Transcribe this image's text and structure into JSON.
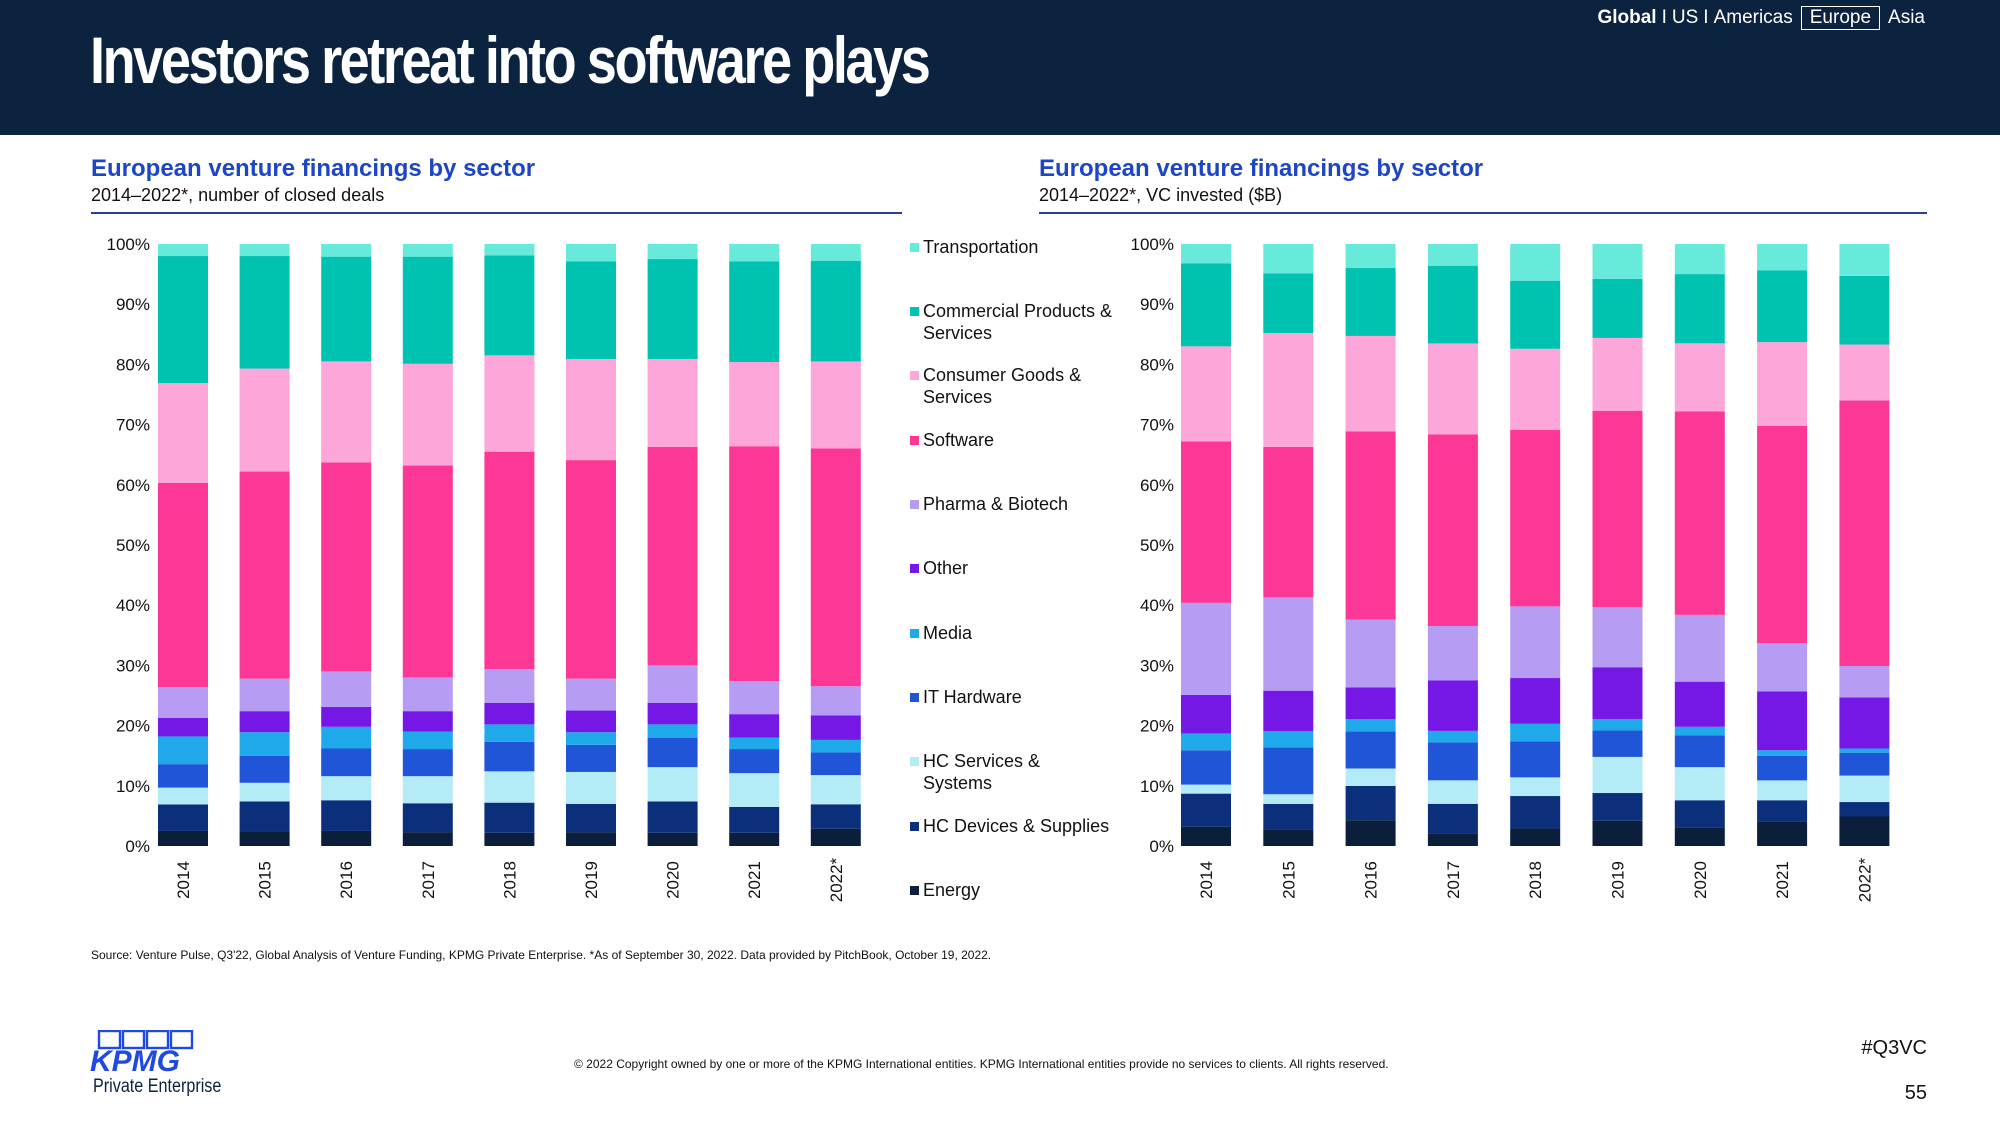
{
  "header": {
    "title": "Investors retreat into software plays",
    "nav": {
      "global": "Global",
      "sep1": "I",
      "us": "US",
      "sep2": "I",
      "americas": "Americas",
      "europe": "Europe",
      "asia": "Asia"
    }
  },
  "colors": {
    "Energy": "#0b1f3d",
    "HC Devices & Supplies": "#0b2f7a",
    "HC Services & Systems": "#b3ecf7",
    "IT Hardware": "#1f55d6",
    "Media": "#20a9ea",
    "Other": "#7518e6",
    "Pharma & Biotech": "#b69cf2",
    "Software": "#fc3796",
    "Consumer Goods & Services": "#fda6d9",
    "Commercial Products & Services": "#00c2b0",
    "Transportation": "#67ead9"
  },
  "legend": [
    {
      "line1": "Transportation",
      "line2": ""
    },
    {
      "line1": "Commercial Products &",
      "line2": "Services"
    },
    {
      "line1": "Consumer Goods &",
      "line2": "Services"
    },
    {
      "line1": "Software",
      "line2": ""
    },
    {
      "line1": "Pharma & Biotech",
      "line2": ""
    },
    {
      "line1": "Other",
      "line2": ""
    },
    {
      "line1": "Media",
      "line2": ""
    },
    {
      "line1": "IT Hardware",
      "line2": ""
    },
    {
      "line1": "HC Services &",
      "line2": "Systems"
    },
    {
      "line1": "HC Devices & Supplies",
      "line2": ""
    },
    {
      "line1": "Energy",
      "line2": ""
    }
  ],
  "chart_data": [
    {
      "type": "bar",
      "stacked": true,
      "title": "European venture financings by sector",
      "subtitle": "2014–2022*, number of closed deals",
      "categories": [
        "2014",
        "2015",
        "2016",
        "2017",
        "2018",
        "2019",
        "2020",
        "2021",
        "2022*"
      ],
      "yticks": [
        "0%",
        "10%",
        "20%",
        "30%",
        "40%",
        "50%",
        "60%",
        "70%",
        "80%",
        "90%",
        "100%"
      ],
      "ylim": [
        0,
        100
      ],
      "series": [
        {
          "name": "Energy",
          "values": [
            2.5,
            2.4,
            2.5,
            2.3,
            2.2,
            2.3,
            2.2,
            2.2,
            2.9
          ]
        },
        {
          "name": "HC Devices & Supplies",
          "values": [
            4.4,
            5.0,
            5.1,
            4.8,
            5.0,
            4.7,
            5.2,
            4.3,
            4.1
          ]
        },
        {
          "name": "HC Services & Systems",
          "values": [
            2.8,
            3.1,
            4.0,
            4.5,
            5.2,
            5.3,
            5.7,
            5.6,
            4.9
          ]
        },
        {
          "name": "IT Hardware",
          "values": [
            3.9,
            4.5,
            4.6,
            4.5,
            4.9,
            4.5,
            4.9,
            4.0,
            3.8
          ]
        },
        {
          "name": "Media",
          "values": [
            4.6,
            3.9,
            3.6,
            2.9,
            2.9,
            2.1,
            2.2,
            1.9,
            2.1
          ]
        },
        {
          "name": "Other",
          "values": [
            3.1,
            3.5,
            3.3,
            3.4,
            3.6,
            3.6,
            3.6,
            3.9,
            4.1
          ]
        },
        {
          "name": "Pharma & Biotech",
          "values": [
            5.1,
            5.4,
            5.9,
            5.6,
            5.6,
            5.3,
            6.2,
            5.5,
            4.9
          ]
        },
        {
          "name": "Software",
          "values": [
            33.9,
            34.4,
            34.7,
            35.2,
            36.1,
            36.3,
            36.3,
            39.0,
            39.9
          ]
        },
        {
          "name": "Consumer Goods & Services",
          "values": [
            16.6,
            17.1,
            16.8,
            16.9,
            16.0,
            16.8,
            14.6,
            14.0,
            14.6
          ]
        },
        {
          "name": "Commercial Products & Services",
          "values": [
            21.1,
            18.7,
            17.4,
            17.8,
            16.6,
            16.2,
            16.6,
            16.7,
            16.9
          ]
        },
        {
          "name": "Transportation",
          "values": [
            2.0,
            2.0,
            2.1,
            2.1,
            1.9,
            2.9,
            2.5,
            2.9,
            2.8
          ]
        }
      ]
    },
    {
      "type": "bar",
      "stacked": true,
      "title": "European venture financings by sector",
      "subtitle": "2014–2022*, VC invested ($B)",
      "categories": [
        "2014",
        "2015",
        "2016",
        "2017",
        "2018",
        "2019",
        "2020",
        "2021",
        "2022*"
      ],
      "yticks": [
        "0%",
        "10%",
        "20%",
        "30%",
        "40%",
        "50%",
        "60%",
        "70%",
        "80%",
        "90%",
        "100%"
      ],
      "ylim": [
        0,
        100
      ],
      "series": [
        {
          "name": "Energy",
          "values": [
            3.2,
            2.8,
            4.3,
            2.1,
            2.9,
            4.2,
            3.1,
            4.0,
            4.9
          ]
        },
        {
          "name": "HC Devices & Supplies",
          "values": [
            5.5,
            4.2,
            5.7,
            4.9,
            5.4,
            4.6,
            4.5,
            3.6,
            2.4
          ]
        },
        {
          "name": "HC Services & Systems",
          "values": [
            1.5,
            1.6,
            2.9,
            3.9,
            3.1,
            6.0,
            5.5,
            3.3,
            4.4
          ]
        },
        {
          "name": "IT Hardware",
          "values": [
            5.7,
            7.8,
            6.2,
            6.3,
            6.0,
            4.4,
            5.3,
            4.1,
            3.8
          ]
        },
        {
          "name": "Media",
          "values": [
            2.8,
            2.7,
            2.0,
            1.9,
            2.9,
            1.9,
            1.4,
            0.9,
            0.7
          ]
        },
        {
          "name": "Other",
          "values": [
            6.4,
            6.7,
            5.3,
            8.4,
            7.6,
            8.6,
            7.5,
            9.8,
            8.5
          ]
        },
        {
          "name": "Pharma & Biotech",
          "values": [
            15.3,
            15.5,
            11.3,
            9.0,
            11.9,
            10.0,
            11.1,
            8.0,
            5.2
          ]
        },
        {
          "name": "Software",
          "values": [
            26.8,
            25.0,
            31.3,
            31.8,
            29.3,
            32.6,
            33.8,
            36.1,
            44.1
          ]
        },
        {
          "name": "Consumer Goods & Services",
          "values": [
            15.8,
            18.9,
            15.9,
            15.1,
            13.5,
            12.1,
            11.3,
            13.9,
            9.3
          ]
        },
        {
          "name": "Commercial Products & Services",
          "values": [
            13.8,
            9.9,
            11.3,
            12.9,
            11.3,
            9.8,
            11.5,
            11.9,
            11.4
          ]
        },
        {
          "name": "Transportation",
          "values": [
            3.2,
            4.9,
            4.0,
            3.6,
            6.1,
            5.8,
            5.0,
            4.4,
            5.3
          ]
        }
      ]
    }
  ],
  "footer": {
    "source": "Source: Venture Pulse, Q3'22, Global Analysis of Venture Funding, KPMG Private Enterprise. *As of September 30, 2022. Data provided by PitchBook, October 19, 2022.",
    "copyright": "© 2022 Copyright owned by one or more of the KPMG International entities. KPMG International entities provide no services to clients. All rights reserved.",
    "hashtag": "#Q3VC",
    "page": "55",
    "logo_text": "KPMG",
    "logo_sub": "Private Enterprise"
  }
}
